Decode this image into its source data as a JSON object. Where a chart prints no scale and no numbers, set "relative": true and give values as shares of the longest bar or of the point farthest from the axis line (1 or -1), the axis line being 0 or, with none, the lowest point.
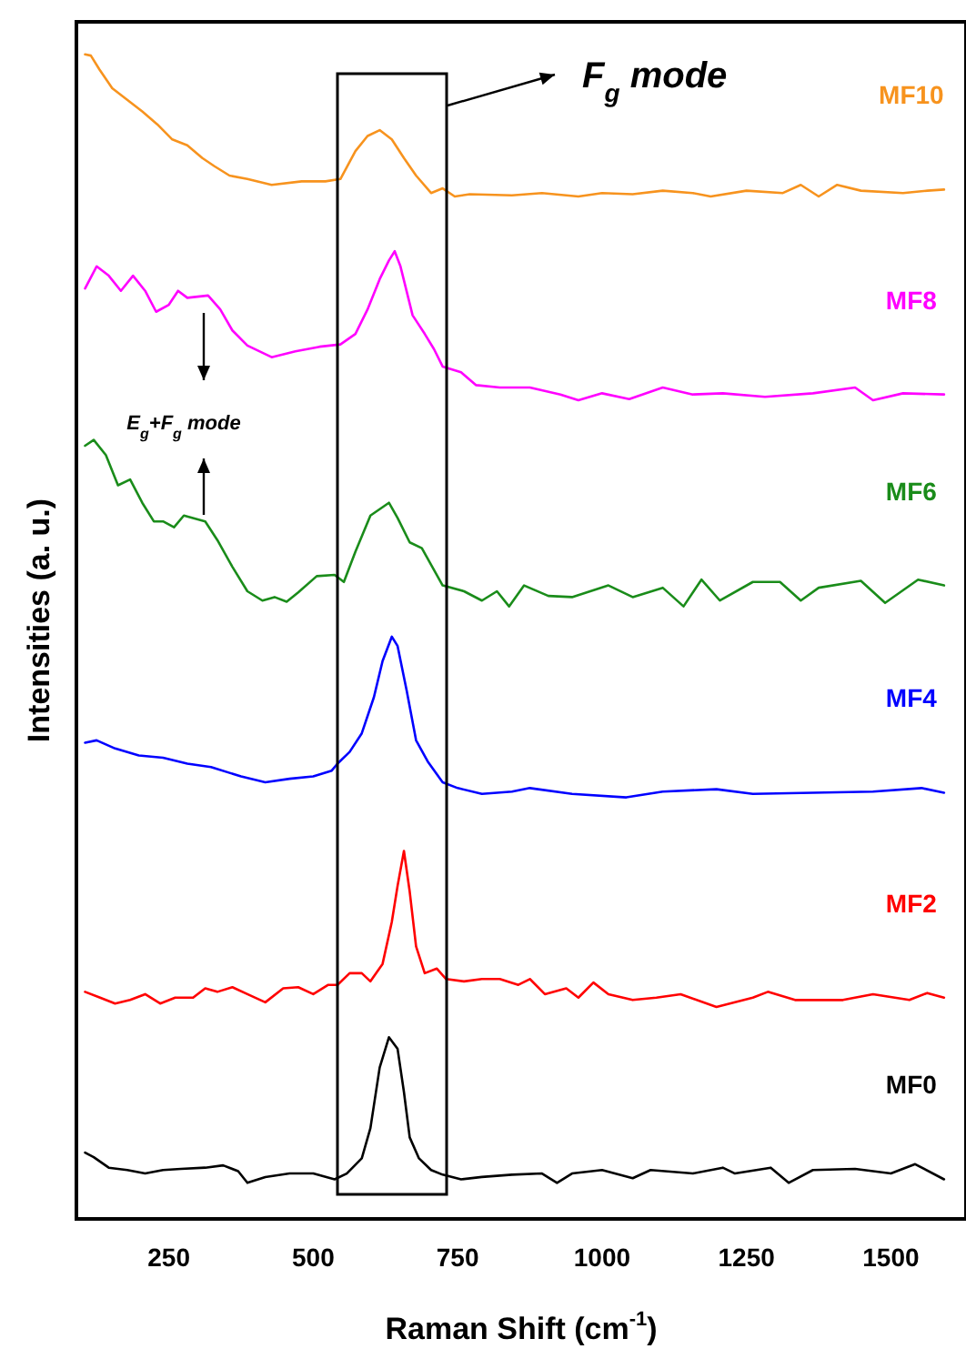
{
  "chart_data": {
    "type": "line",
    "relative": true,
    "xlabel": "Raman Shift (cm$^{-1}$)",
    "ylabel": "Intensities (a. u.)",
    "xlim": [
      90,
      1630
    ],
    "xticks": [
      250,
      500,
      750,
      1000,
      1250,
      1500
    ],
    "grid": false,
    "legend": false,
    "marker": "none",
    "line_style": "solid",
    "series": [
      {
        "name": "MF10",
        "color": "#f7931e",
        "x": [
          105,
          115,
          130,
          152,
          178,
          204,
          230,
          256,
          282,
          308,
          329,
          355,
          386,
          428,
          480,
          521,
          547,
          573,
          594,
          615,
          636,
          657,
          678,
          704,
          724,
          745,
          771,
          844,
          896,
          959,
          1000,
          1053,
          1105,
          1157,
          1188,
          1250,
          1313,
          1344,
          1375,
          1407,
          1448,
          1521,
          1563,
          1592
        ],
        "values": [
          1.0,
          0.999,
          0.987,
          0.971,
          0.961,
          0.951,
          0.94,
          0.927,
          0.922,
          0.911,
          0.904,
          0.896,
          0.893,
          0.888,
          0.891,
          0.891,
          0.893,
          0.917,
          0.93,
          0.935,
          0.927,
          0.911,
          0.896,
          0.881,
          0.885,
          0.878,
          0.88,
          0.879,
          0.881,
          0.878,
          0.881,
          0.88,
          0.883,
          0.881,
          0.878,
          0.883,
          0.881,
          0.888,
          0.878,
          0.888,
          0.883,
          0.881,
          0.883,
          0.884
        ]
      },
      {
        "name": "MF8",
        "color": "#ff00ff",
        "x": [
          105,
          125,
          146,
          167,
          188,
          209,
          228,
          250,
          266,
          282,
          318,
          339,
          360,
          386,
          428,
          469,
          511,
          547,
          573,
          594,
          615,
          631,
          641,
          651,
          672,
          693,
          709,
          724,
          756,
          782,
          823,
          875,
          928,
          959,
          1000,
          1047,
          1105,
          1157,
          1209,
          1282,
          1365,
          1438,
          1469,
          1521,
          1592
        ],
        "values": [
          0.799,
          0.818,
          0.81,
          0.797,
          0.81,
          0.797,
          0.779,
          0.785,
          0.797,
          0.791,
          0.793,
          0.781,
          0.763,
          0.75,
          0.74,
          0.745,
          0.749,
          0.751,
          0.76,
          0.781,
          0.807,
          0.823,
          0.831,
          0.818,
          0.776,
          0.76,
          0.747,
          0.732,
          0.727,
          0.716,
          0.714,
          0.714,
          0.708,
          0.703,
          0.709,
          0.704,
          0.714,
          0.708,
          0.709,
          0.706,
          0.709,
          0.714,
          0.703,
          0.709,
          0.708
        ]
      },
      {
        "name": "MF6",
        "color": "#1a8c1a",
        "x": [
          105,
          120,
          141,
          162,
          183,
          204,
          224,
          240,
          259,
          276,
          313,
          334,
          360,
          386,
          412,
          433,
          454,
          474,
          506,
          537,
          553,
          573,
          599,
          631,
          646,
          667,
          688,
          724,
          761,
          792,
          818,
          839,
          865,
          907,
          948,
          1011,
          1053,
          1105,
          1141,
          1172,
          1204,
          1261,
          1308,
          1344,
          1375,
          1448,
          1490,
          1547,
          1592
        ],
        "values": [
          0.664,
          0.669,
          0.656,
          0.63,
          0.635,
          0.615,
          0.599,
          0.599,
          0.594,
          0.604,
          0.599,
          0.583,
          0.56,
          0.539,
          0.531,
          0.534,
          0.53,
          0.538,
          0.552,
          0.553,
          0.547,
          0.573,
          0.604,
          0.615,
          0.602,
          0.581,
          0.576,
          0.544,
          0.539,
          0.531,
          0.539,
          0.526,
          0.544,
          0.535,
          0.534,
          0.544,
          0.534,
          0.542,
          0.526,
          0.549,
          0.531,
          0.547,
          0.547,
          0.531,
          0.542,
          0.548,
          0.529,
          0.549,
          0.544
        ]
      },
      {
        "name": "MF4",
        "color": "#0000ff",
        "x": [
          105,
          125,
          157,
          198,
          240,
          282,
          323,
          375,
          417,
          459,
          500,
          532,
          542,
          563,
          584,
          605,
          620,
          636,
          646,
          662,
          678,
          698,
          724,
          750,
          792,
          844,
          875,
          948,
          1042,
          1105,
          1198,
          1261,
          1365,
          1469,
          1553,
          1592
        ],
        "values": [
          0.409,
          0.411,
          0.404,
          0.398,
          0.396,
          0.391,
          0.388,
          0.38,
          0.375,
          0.378,
          0.38,
          0.385,
          0.391,
          0.401,
          0.417,
          0.448,
          0.479,
          0.5,
          0.492,
          0.453,
          0.411,
          0.393,
          0.375,
          0.37,
          0.365,
          0.367,
          0.37,
          0.365,
          0.362,
          0.367,
          0.369,
          0.365,
          0.366,
          0.367,
          0.37,
          0.366
        ]
      },
      {
        "name": "MF2",
        "color": "#ff0000",
        "x": [
          105,
          131,
          157,
          183,
          209,
          235,
          261,
          292,
          313,
          334,
          360,
          386,
          417,
          448,
          474,
          500,
          526,
          542,
          563,
          584,
          599,
          620,
          636,
          646,
          657,
          667,
          678,
          693,
          714,
          730,
          761,
          792,
          823,
          855,
          875,
          901,
          938,
          959,
          985,
          1011,
          1053,
          1094,
          1136,
          1198,
          1261,
          1287,
          1334,
          1417,
          1469,
          1532,
          1563,
          1592
        ],
        "values": [
          0.195,
          0.19,
          0.185,
          0.188,
          0.193,
          0.185,
          0.19,
          0.19,
          0.198,
          0.195,
          0.199,
          0.193,
          0.186,
          0.198,
          0.199,
          0.193,
          0.201,
          0.201,
          0.211,
          0.211,
          0.204,
          0.219,
          0.255,
          0.286,
          0.316,
          0.281,
          0.234,
          0.211,
          0.215,
          0.206,
          0.204,
          0.206,
          0.206,
          0.201,
          0.206,
          0.193,
          0.198,
          0.19,
          0.203,
          0.193,
          0.188,
          0.19,
          0.193,
          0.182,
          0.19,
          0.195,
          0.188,
          0.188,
          0.193,
          0.188,
          0.194,
          0.19
        ]
      },
      {
        "name": "MF0",
        "color": "#000000",
        "x": [
          105,
          120,
          146,
          178,
          209,
          240,
          271,
          313,
          344,
          370,
          386,
          417,
          459,
          500,
          537,
          558,
          584,
          599,
          615,
          631,
          646,
          657,
          667,
          683,
          704,
          724,
          756,
          792,
          844,
          896,
          922,
          948,
          1000,
          1053,
          1084,
          1157,
          1209,
          1230,
          1292,
          1323,
          1365,
          1438,
          1500,
          1542,
          1592
        ],
        "values": [
          0.057,
          0.053,
          0.044,
          0.042,
          0.039,
          0.042,
          0.043,
          0.044,
          0.046,
          0.041,
          0.031,
          0.036,
          0.039,
          0.039,
          0.034,
          0.039,
          0.052,
          0.078,
          0.13,
          0.156,
          0.146,
          0.109,
          0.07,
          0.052,
          0.042,
          0.038,
          0.034,
          0.036,
          0.038,
          0.039,
          0.031,
          0.039,
          0.042,
          0.035,
          0.042,
          0.039,
          0.044,
          0.039,
          0.044,
          0.031,
          0.042,
          0.043,
          0.039,
          0.047,
          0.034
        ]
      }
    ],
    "annotations": [
      "F$_{g}$ mode",
      "E$_{g}$+F$_{g}$ mode"
    ]
  }
}
